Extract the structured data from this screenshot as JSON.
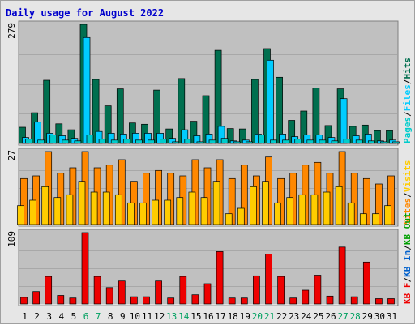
{
  "chart_data": {
    "type": "bar",
    "title": "Daily usage for August 2022",
    "categories": [
      "1",
      "2",
      "3",
      "4",
      "5",
      "6",
      "7",
      "8",
      "9",
      "10",
      "11",
      "12",
      "13",
      "14",
      "15",
      "16",
      "17",
      "18",
      "19",
      "20",
      "21",
      "22",
      "23",
      "24",
      "25",
      "26",
      "27",
      "28",
      "29",
      "30",
      "31"
    ],
    "weekend_days": [
      "6",
      "7",
      "13",
      "14",
      "20",
      "21",
      "27",
      "28"
    ],
    "colors": {
      "title": "#0000cc",
      "background": "#c0c0c0",
      "hits": "#006f4f",
      "files": "#00ccff",
      "pages": "#00cccc",
      "visits": "#ffcc00",
      "sites": "#ff8800",
      "kb_in": "#0060cc",
      "kb_out": "#00a000",
      "kb_f": "#ee0000",
      "weekday_label": "#000000",
      "weekend_label": "#00a060"
    },
    "panels": [
      {
        "name": "requests",
        "scale_label": "279",
        "ymax": 279,
        "legend": [
          "Pages",
          "/",
          "Files",
          "/",
          "Hits"
        ],
        "series": [
          {
            "name": "Hits",
            "values": [
              38,
              72,
              148,
              46,
              32,
              279,
              150,
              88,
              128,
              48,
              45,
              125,
              34,
              152,
              52,
              112,
              218,
              35,
              34,
              150,
              222,
              155,
              54,
              76,
              130,
              42,
              128,
              40,
              43,
              30,
              30
            ]
          },
          {
            "name": "Files",
            "values": [
              14,
              50,
              24,
              18,
              12,
              248,
              28,
              24,
              22,
              24,
              24,
              24,
              12,
              32,
              18,
              22,
              40,
              6,
              8,
              22,
              195,
              22,
              16,
              20,
              20,
              14,
              105,
              18,
              22,
              6,
              8
            ]
          },
          {
            "name": "Pages",
            "values": [
              10,
              8,
              20,
              8,
              6,
              20,
              10,
              8,
              10,
              8,
              8,
              10,
              4,
              10,
              4,
              8,
              12,
              4,
              4,
              20,
              8,
              8,
              10,
              8,
              8,
              6,
              10,
              8,
              6,
              4,
              4
            ]
          }
        ]
      },
      {
        "name": "visitors",
        "scale_label": "27",
        "ymax": 27,
        "legend": [
          "Sites",
          "/",
          "Visits"
        ],
        "series": [
          {
            "name": "Sites",
            "values": [
              17,
              18,
              27,
              19,
              21,
              27,
              21,
              22,
              24,
              16,
              19,
              20,
              19,
              18,
              24,
              21,
              24,
              17,
              22,
              18,
              25,
              17,
              19,
              22,
              23,
              19,
              27,
              19,
              17,
              15,
              18
            ]
          },
          {
            "name": "Visits",
            "values": [
              7,
              9,
              14,
              10,
              11,
              16,
              12,
              12,
              11,
              8,
              8,
              9,
              9,
              10,
              12,
              10,
              16,
              4,
              6,
              14,
              16,
              8,
              10,
              11,
              11,
              12,
              14,
              8,
              4,
              4,
              7
            ]
          }
        ]
      },
      {
        "name": "volume",
        "scale_label": "109",
        "ymax": 109,
        "legend": [
          "KB F",
          "/",
          "KB In",
          "/",
          "KB Out"
        ],
        "series": [
          {
            "name": "KB F",
            "values": [
              10,
              19,
              42,
              13,
              9,
              109,
              42,
              25,
              35,
              11,
              11,
              35,
              9,
              42,
              14,
              31,
              80,
              9,
              9,
              43,
              76,
              42,
              9,
              21,
              44,
              12,
              87,
              11,
              64,
              8,
              8
            ]
          }
        ]
      }
    ]
  }
}
